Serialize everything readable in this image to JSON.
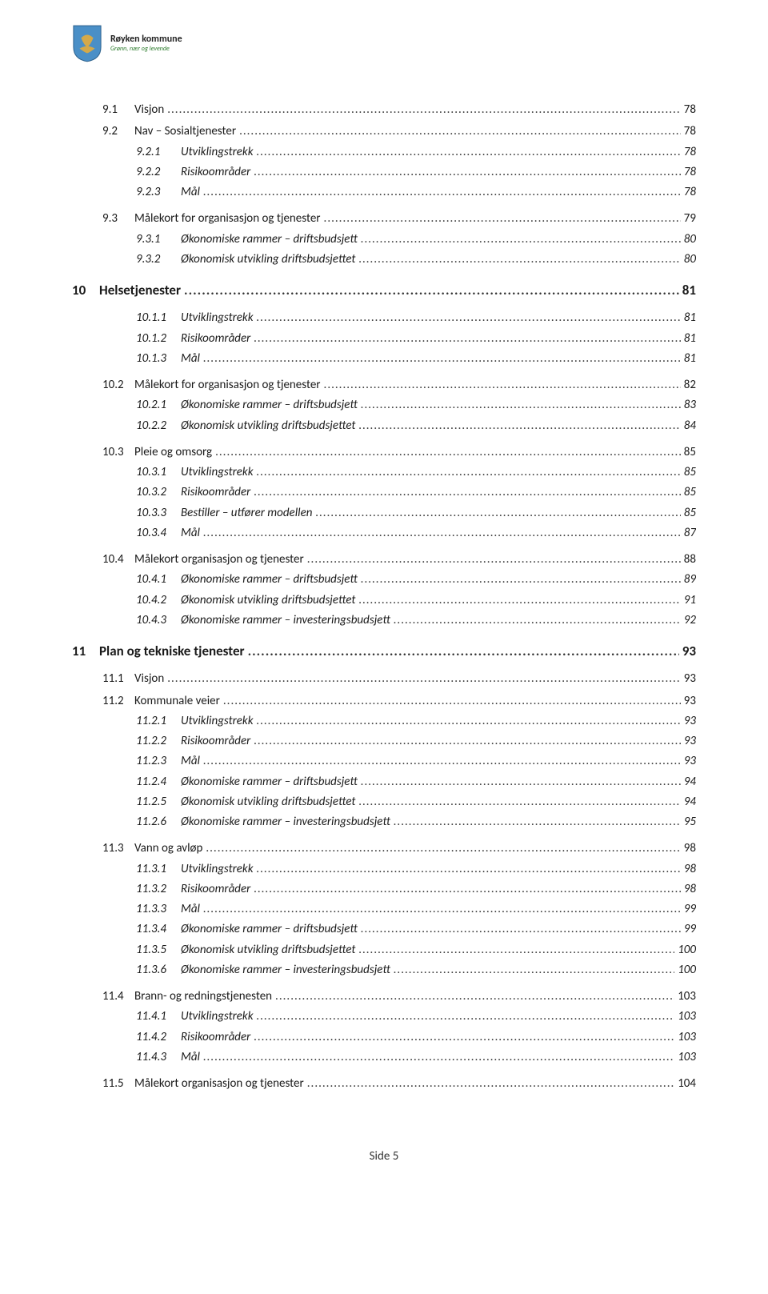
{
  "header": {
    "org_name": "Røyken kommune",
    "tagline": "Grønn, nær og levende"
  },
  "colors": {
    "text": "#1a1a1a",
    "background": "#ffffff",
    "tagline": "#2a7a2a",
    "shield_blue": "#4a8fc7",
    "shield_gold": "#d4a94a"
  },
  "toc": [
    {
      "level": 2,
      "num": "9.1",
      "label": "Visjon",
      "page": "78"
    },
    {
      "level": 2,
      "num": "9.2",
      "label": "Nav – Sosialtjenester",
      "page": "78"
    },
    {
      "level": 3,
      "num": "9.2.1",
      "label": "Utviklingstrekk",
      "page": "78"
    },
    {
      "level": 3,
      "num": "9.2.2",
      "label": "Risikoområder",
      "page": "78"
    },
    {
      "level": 3,
      "num": "9.2.3",
      "label": "Mål",
      "page": "78"
    },
    {
      "level": 2,
      "num": "9.3",
      "label": "Målekort for organisasjon og tjenester",
      "page": "79",
      "gap": true
    },
    {
      "level": 3,
      "num": "9.3.1",
      "label": "Økonomiske rammer – driftsbudsjett",
      "page": "80"
    },
    {
      "level": 3,
      "num": "9.3.2",
      "label": "Økonomisk utvikling driftsbudsjettet",
      "page": "80"
    },
    {
      "level": 1,
      "num": "10",
      "label": "Helsetjenester",
      "page": "81"
    },
    {
      "level": 3,
      "num": "10.1.1",
      "label": "Utviklingstrekk",
      "page": "81",
      "gap": true
    },
    {
      "level": 3,
      "num": "10.1.2",
      "label": "Risikoområder",
      "page": "81"
    },
    {
      "level": 3,
      "num": "10.1.3",
      "label": "Mål",
      "page": "81"
    },
    {
      "level": 2,
      "num": "10.2",
      "label": "Målekort for organisasjon og tjenester",
      "page": "82",
      "gap": true
    },
    {
      "level": 3,
      "num": "10.2.1",
      "label": "Økonomiske rammer – driftsbudsjett",
      "page": "83"
    },
    {
      "level": 3,
      "num": "10.2.2",
      "label": "Økonomisk utvikling driftsbudsjettet",
      "page": "84"
    },
    {
      "level": 2,
      "num": "10.3",
      "label": "Pleie og omsorg",
      "page": "85",
      "gap": true
    },
    {
      "level": 3,
      "num": "10.3.1",
      "label": "Utviklingstrekk",
      "page": "85"
    },
    {
      "level": 3,
      "num": "10.3.2",
      "label": "Risikoområder",
      "page": "85"
    },
    {
      "level": 3,
      "num": "10.3.3",
      "label": "Bestiller – utfører modellen",
      "page": "85"
    },
    {
      "level": 3,
      "num": "10.3.4",
      "label": "Mål",
      "page": "87"
    },
    {
      "level": 2,
      "num": "10.4",
      "label": "Målekort organisasjon og tjenester",
      "page": "88",
      "gap": true
    },
    {
      "level": 3,
      "num": "10.4.1",
      "label": "Økonomiske rammer – driftsbudsjett",
      "page": "89"
    },
    {
      "level": 3,
      "num": "10.4.2",
      "label": "Økonomisk utvikling driftsbudsjettet",
      "page": "91"
    },
    {
      "level": 3,
      "num": "10.4.3",
      "label": "Økonomiske rammer – investeringsbudsjett",
      "page": "92"
    },
    {
      "level": 1,
      "num": "11",
      "label": "Plan og tekniske tjenester",
      "page": "93"
    },
    {
      "level": 2,
      "num": "11.1",
      "label": "Visjon",
      "page": "93",
      "gap": true
    },
    {
      "level": 2,
      "num": "11.2",
      "label": "Kommunale veier",
      "page": "93"
    },
    {
      "level": 3,
      "num": "11.2.1",
      "label": "Utviklingstrekk",
      "page": "93"
    },
    {
      "level": 3,
      "num": "11.2.2",
      "label": "Risikoområder",
      "page": "93"
    },
    {
      "level": 3,
      "num": "11.2.3",
      "label": "Mål",
      "page": "93"
    },
    {
      "level": 3,
      "num": "11.2.4",
      "label": "Økonomiske rammer – driftsbudsjett",
      "page": "94"
    },
    {
      "level": 3,
      "num": "11.2.5",
      "label": "Økonomisk utvikling driftsbudsjettet",
      "page": "94"
    },
    {
      "level": 3,
      "num": "11.2.6",
      "label": "Økonomiske rammer – investeringsbudsjett",
      "page": "95"
    },
    {
      "level": 2,
      "num": "11.3",
      "label": "Vann og avløp",
      "page": "98",
      "gap": true
    },
    {
      "level": 3,
      "num": "11.3.1",
      "label": "Utviklingstrekk",
      "page": "98"
    },
    {
      "level": 3,
      "num": "11.3.2",
      "label": "Risikoområder",
      "page": "98"
    },
    {
      "level": 3,
      "num": "11.3.3",
      "label": "Mål",
      "page": "99"
    },
    {
      "level": 3,
      "num": "11.3.4",
      "label": "Økonomiske rammer – driftsbudsjett",
      "page": "99"
    },
    {
      "level": 3,
      "num": "11.3.5",
      "label": "Økonomisk utvikling driftsbudsjettet",
      "page": "100"
    },
    {
      "level": 3,
      "num": "11.3.6",
      "label": "Økonomiske rammer – investeringsbudsjett",
      "page": "100"
    },
    {
      "level": 2,
      "num": "11.4",
      "label": "Brann- og redningstjenesten",
      "page": "103",
      "gap": true
    },
    {
      "level": 3,
      "num": "11.4.1",
      "label": "Utviklingstrekk",
      "page": "103"
    },
    {
      "level": 3,
      "num": "11.4.2",
      "label": "Risikoområder",
      "page": "103"
    },
    {
      "level": 3,
      "num": "11.4.3",
      "label": "Mål",
      "page": "103"
    },
    {
      "level": 2,
      "num": "11.5",
      "label": "Målekort organisasjon og tjenester",
      "page": "104",
      "gap": true
    }
  ],
  "footer": {
    "label": "Side 5"
  }
}
